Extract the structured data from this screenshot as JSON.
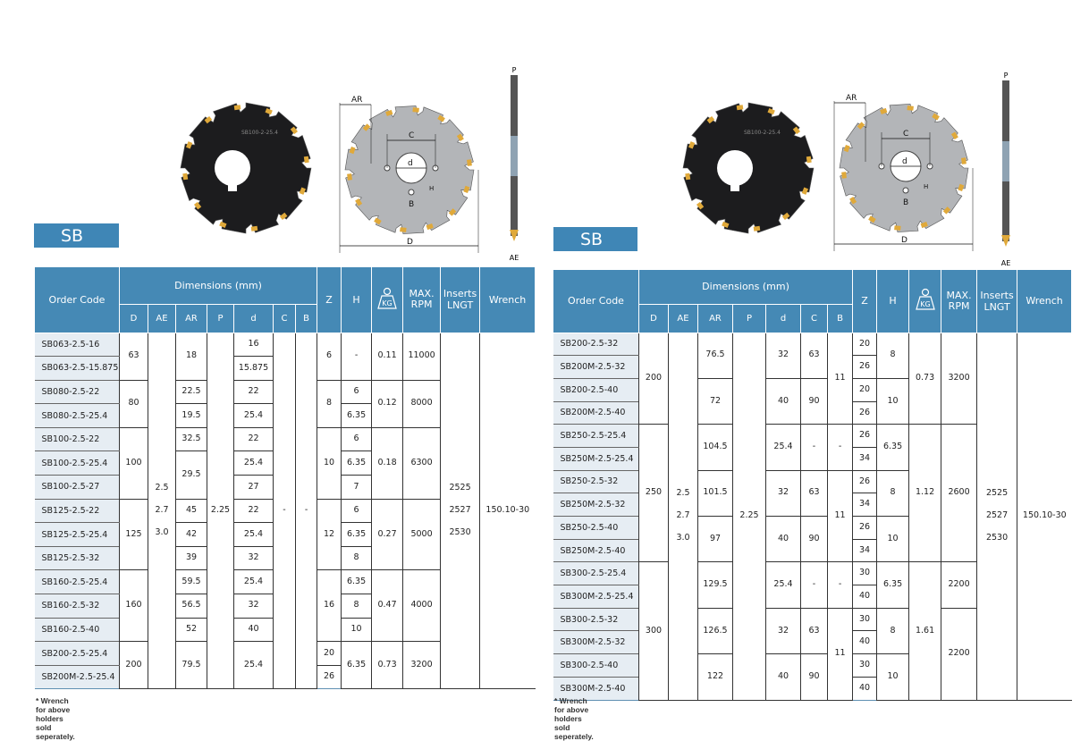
{
  "colors": {
    "header": "#4589b5",
    "label": "#3f86b6",
    "code_bg": "#e6edf3"
  },
  "icons": {
    "weight": "weight-kg-icon"
  },
  "diagram": {
    "AR": "AR",
    "C": "C",
    "d": "d",
    "B": "B",
    "H": "H",
    "D": "D",
    "P": "P",
    "AE": "AE",
    "engraving": "SB100-2-25.4"
  },
  "headers": {
    "order_code": "Order Code",
    "dimensions": "Dimensions (mm)",
    "sub": [
      "D",
      "AE",
      "AR",
      "P",
      "d",
      "C",
      "B"
    ],
    "Z": "Z",
    "H": "H",
    "kg": "KG",
    "rpm": "MAX.\nRPM",
    "inserts": "Inserts\nLNGT",
    "wrench": "Wrench"
  },
  "left": {
    "label": "SB",
    "note": "* Wrench for above holders sold seperately.",
    "rows": [
      [
        "SB063-2.5-16",
        {
          "v": "63",
          "rs": 2
        },
        {
          "v": "2.5\n2.7\n3.0",
          "rs": 15
        },
        {
          "v": "18",
          "rs": 2
        },
        {
          "v": "2.25",
          "rs": 15
        },
        "16",
        {
          "v": "-",
          "rs": 15
        },
        {
          "v": "-",
          "rs": 15
        },
        {
          "v": "6",
          "rs": 2
        },
        {
          "v": "-",
          "rs": 2
        },
        {
          "v": "0.11",
          "rs": 2
        },
        {
          "v": "11000",
          "rs": 2
        },
        {
          "v": "2525\n2527\n2530",
          "rs": 15
        },
        {
          "v": "150.10-30",
          "rs": 15
        }
      ],
      [
        "SB063-2.5-15.875",
        "15.875"
      ],
      [
        "SB080-2.5-22",
        {
          "v": "80",
          "rs": 2
        },
        "22.5",
        "22",
        {
          "v": "8",
          "rs": 2
        },
        "6",
        {
          "v": "0.12",
          "rs": 2
        },
        {
          "v": "8000",
          "rs": 2
        }
      ],
      [
        "SB080-2.5-25.4",
        "19.5",
        "25.4",
        "6.35"
      ],
      [
        "SB100-2.5-22",
        {
          "v": "100",
          "rs": 3
        },
        "32.5",
        "22",
        {
          "v": "10",
          "rs": 3
        },
        "6",
        {
          "v": "0.18",
          "rs": 3
        },
        {
          "v": "6300",
          "rs": 3
        }
      ],
      [
        "SB100-2.5-25.4",
        {
          "v": "29.5",
          "rs": 2
        },
        "25.4",
        "6.35"
      ],
      [
        "SB100-2.5-27",
        "27",
        "7"
      ],
      [
        "SB125-2.5-22",
        {
          "v": "125",
          "rs": 3
        },
        "45",
        "22",
        {
          "v": "12",
          "rs": 3
        },
        "6",
        {
          "v": "0.27",
          "rs": 3
        },
        {
          "v": "5000",
          "rs": 3
        }
      ],
      [
        "SB125-2.5-25.4",
        "42",
        "25.4",
        "6.35"
      ],
      [
        "SB125-2.5-32",
        "39",
        "32",
        "8"
      ],
      [
        "SB160-2.5-25.4",
        {
          "v": "160",
          "rs": 3
        },
        "59.5",
        "25.4",
        {
          "v": "16",
          "rs": 3
        },
        "6.35",
        {
          "v": "0.47",
          "rs": 3
        },
        {
          "v": "4000",
          "rs": 3
        }
      ],
      [
        "SB160-2.5-32",
        "56.5",
        "32",
        "8"
      ],
      [
        "SB160-2.5-40",
        "52",
        "40",
        "10"
      ],
      [
        "SB200-2.5-25.4",
        {
          "v": "200",
          "rs": 2
        },
        {
          "v": "79.5",
          "rs": 2
        },
        {
          "v": "25.4",
          "rs": 2
        },
        "20",
        {
          "v": "6.35",
          "rs": 2
        },
        {
          "v": "0.73",
          "rs": 2
        },
        {
          "v": "3200",
          "rs": 2
        }
      ],
      [
        "SB200M-2.5-25.4",
        "26"
      ]
    ]
  },
  "right": {
    "label": "SB",
    "note": "* Wrench for above holders sold seperately.",
    "rows": [
      [
        "SB200-2.5-32",
        {
          "v": "200",
          "rs": 4
        },
        {
          "v": "2.5\n2.7\n3.0",
          "rs": 16
        },
        {
          "v": "76.5",
          "rs": 2
        },
        {
          "v": "2.25",
          "rs": 16
        },
        {
          "v": "32",
          "rs": 2
        },
        {
          "v": "63",
          "rs": 2
        },
        {
          "v": "11",
          "rs": 4
        },
        "20",
        {
          "v": "8",
          "rs": 2
        },
        {
          "v": "0.73",
          "rs": 4
        },
        {
          "v": "3200",
          "rs": 4
        },
        {
          "v": "2525\n2527\n2530",
          "rs": 16
        },
        {
          "v": "150.10-30",
          "rs": 16
        }
      ],
      [
        "SB200M-2.5-32",
        "26"
      ],
      [
        "SB200-2.5-40",
        {
          "v": "72",
          "rs": 2
        },
        {
          "v": "40",
          "rs": 2
        },
        {
          "v": "90",
          "rs": 2
        },
        "20",
        {
          "v": "10",
          "rs": 2
        }
      ],
      [
        "SB200M-2.5-40",
        "26"
      ],
      [
        "SB250-2.5-25.4",
        {
          "v": "250",
          "rs": 6
        },
        {
          "v": "104.5",
          "rs": 2
        },
        {
          "v": "25.4",
          "rs": 2
        },
        {
          "v": "-",
          "rs": 2
        },
        {
          "v": "-",
          "rs": 2
        },
        "26",
        {
          "v": "6.35",
          "rs": 2
        },
        {
          "v": "1.12",
          "rs": 6
        },
        {
          "v": "2600",
          "rs": 6
        }
      ],
      [
        "SB250M-2.5-25.4",
        "34"
      ],
      [
        "SB250-2.5-32",
        {
          "v": "101.5",
          "rs": 2
        },
        {
          "v": "32",
          "rs": 2
        },
        {
          "v": "63",
          "rs": 2
        },
        {
          "v": "11",
          "rs": 4
        },
        "26",
        {
          "v": "8",
          "rs": 2
        }
      ],
      [
        "SB250M-2.5-32",
        "34"
      ],
      [
        "SB250-2.5-40",
        {
          "v": "97",
          "rs": 2
        },
        {
          "v": "40",
          "rs": 2
        },
        {
          "v": "90",
          "rs": 2
        },
        "26",
        {
          "v": "10",
          "rs": 2
        }
      ],
      [
        "SB250M-2.5-40",
        "34"
      ],
      [
        "SB300-2.5-25.4",
        {
          "v": "300",
          "rs": 6
        },
        {
          "v": "129.5",
          "rs": 2
        },
        {
          "v": "25.4",
          "rs": 2
        },
        {
          "v": "-",
          "rs": 2
        },
        {
          "v": "-",
          "rs": 2
        },
        "30",
        {
          "v": "6.35",
          "rs": 2
        },
        {
          "v": "1.61",
          "rs": 6
        },
        {
          "v": "2200",
          "rs": 2
        }
      ],
      [
        "SB300M-2.5-25.4",
        "40"
      ],
      [
        "SB300-2.5-32",
        {
          "v": "126.5",
          "rs": 2
        },
        {
          "v": "32",
          "rs": 2
        },
        {
          "v": "63",
          "rs": 2
        },
        {
          "v": "11",
          "rs": 4
        },
        "30",
        {
          "v": "8",
          "rs": 2
        },
        {
          "v": "2200",
          "rs": 4
        }
      ],
      [
        "SB300M-2.5-32",
        "40"
      ],
      [
        "SB300-2.5-40",
        {
          "v": "122",
          "rs": 2
        },
        {
          "v": "40",
          "rs": 2
        },
        {
          "v": "90",
          "rs": 2
        },
        "30",
        {
          "v": "10",
          "rs": 2
        }
      ],
      [
        "SB300M-2.5-40",
        "40"
      ]
    ]
  }
}
